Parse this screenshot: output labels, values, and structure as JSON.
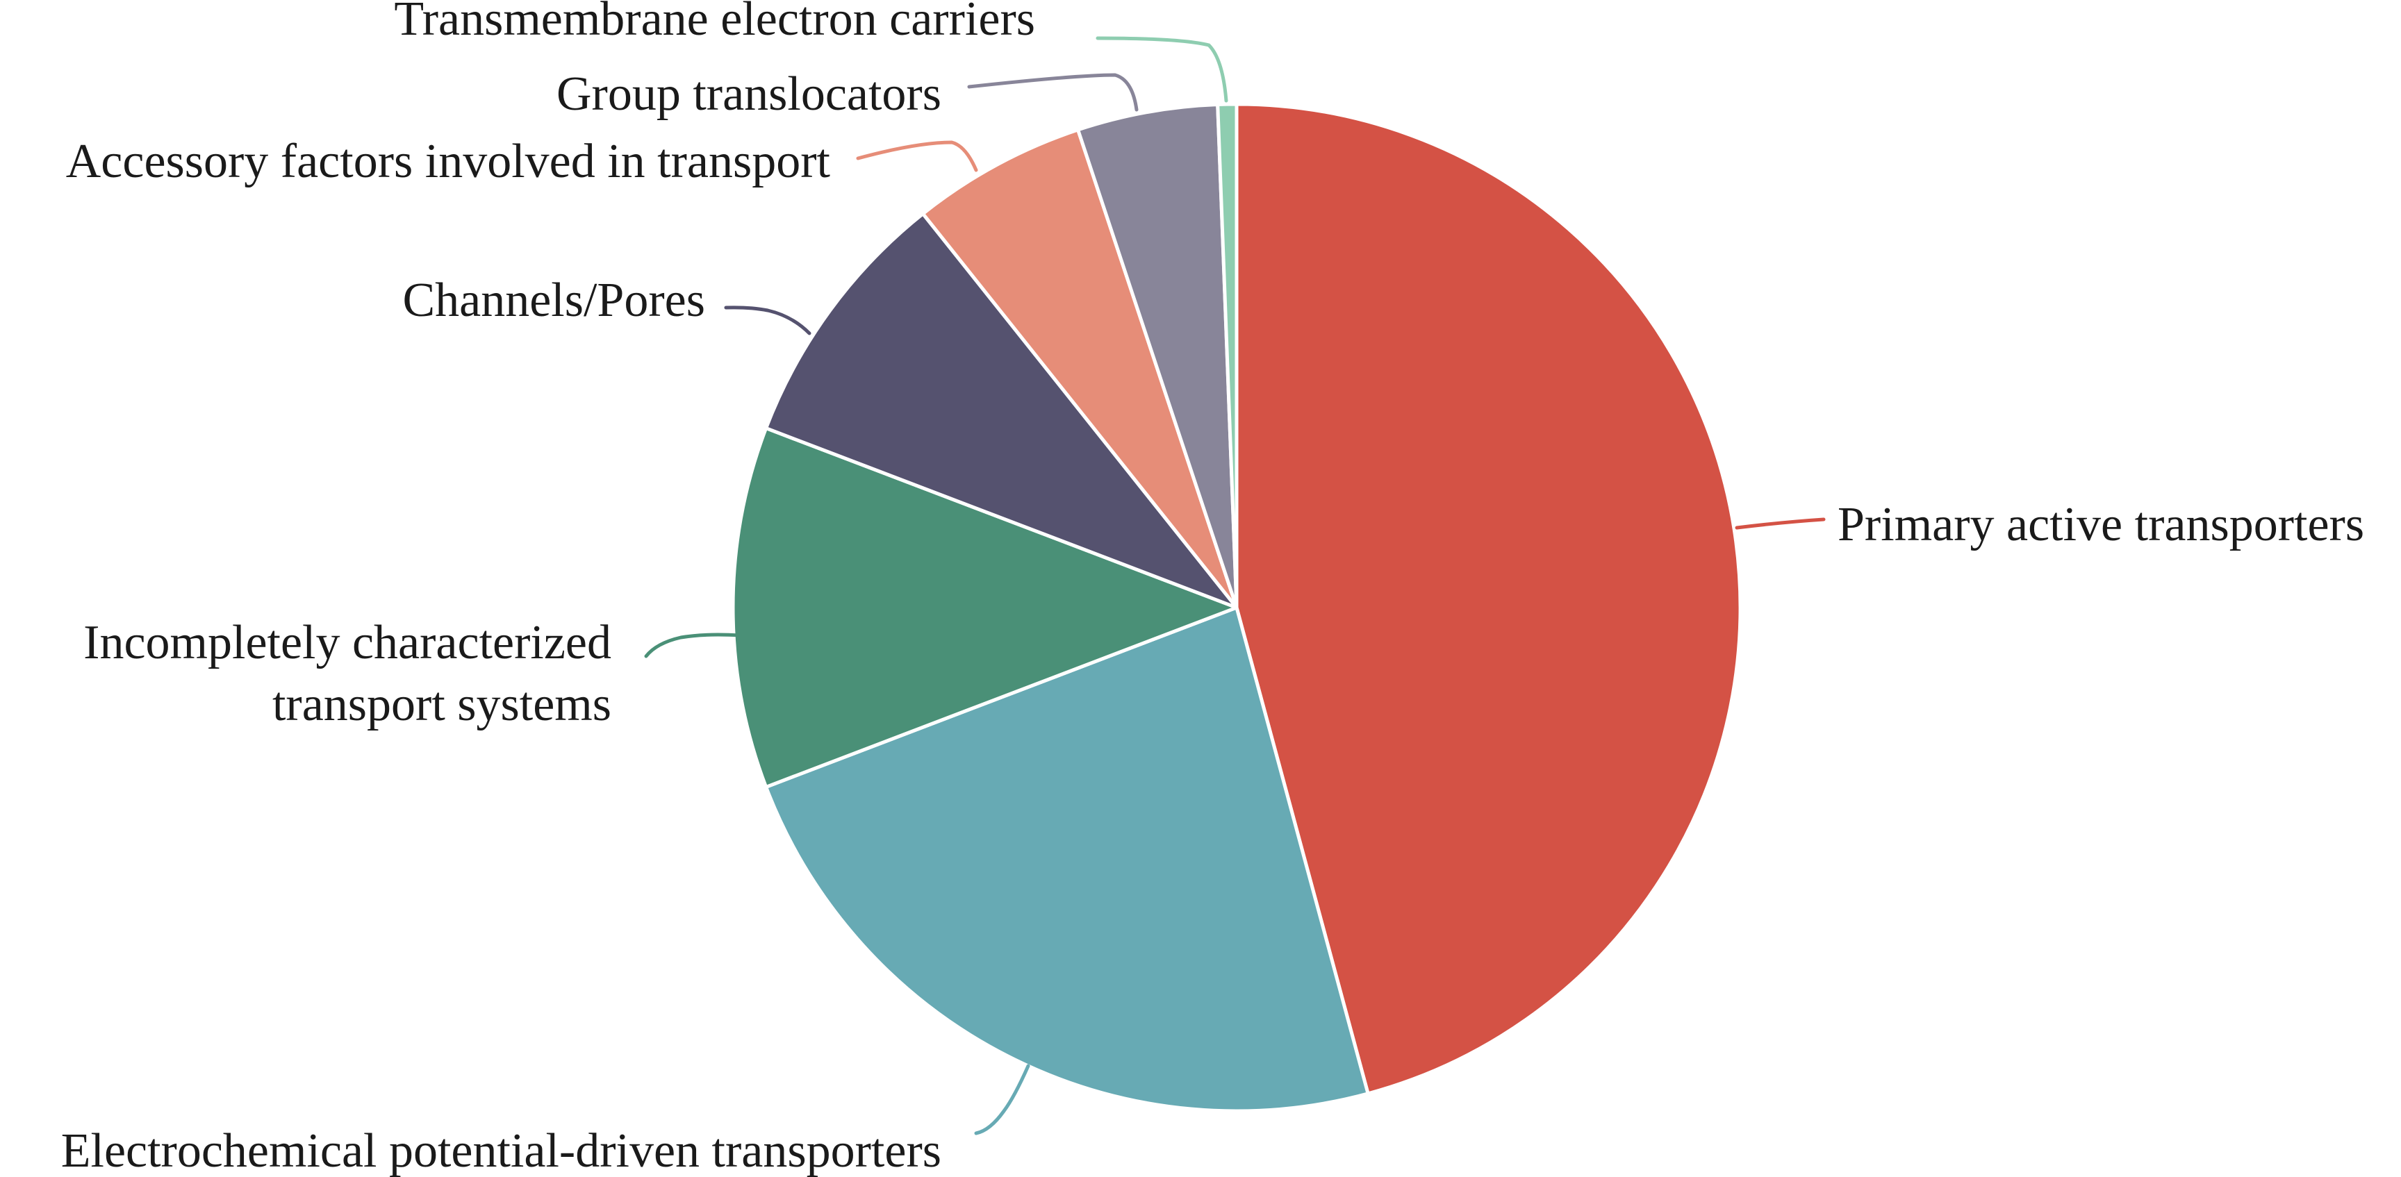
{
  "chart_data": {
    "type": "pie",
    "title": "",
    "slices": [
      {
        "label": "Primary active transporters",
        "value": 45.8,
        "color": "#D45245"
      },
      {
        "label": "Electrochemical potential-driven transporters",
        "value": 23.4,
        "color": "#67AAB4"
      },
      {
        "label": "Incompletely characterized transport systems",
        "value": 11.6,
        "color": "#4A9077"
      },
      {
        "label": "Channels/Pores",
        "value": 8.5,
        "color": "#55526F"
      },
      {
        "label": "Accessory factors involved in transport",
        "value": 5.6,
        "color": "#E68D78"
      },
      {
        "label": "Group translocators",
        "value": 4.5,
        "color": "#888599"
      },
      {
        "label": "Transmembrane electron carriers",
        "value": 0.6,
        "color": "#8ECDB0"
      }
    ],
    "start_angle": "12 o'clock",
    "direction": "clockwise",
    "legend": "none",
    "labels": "outside with leader lines"
  }
}
